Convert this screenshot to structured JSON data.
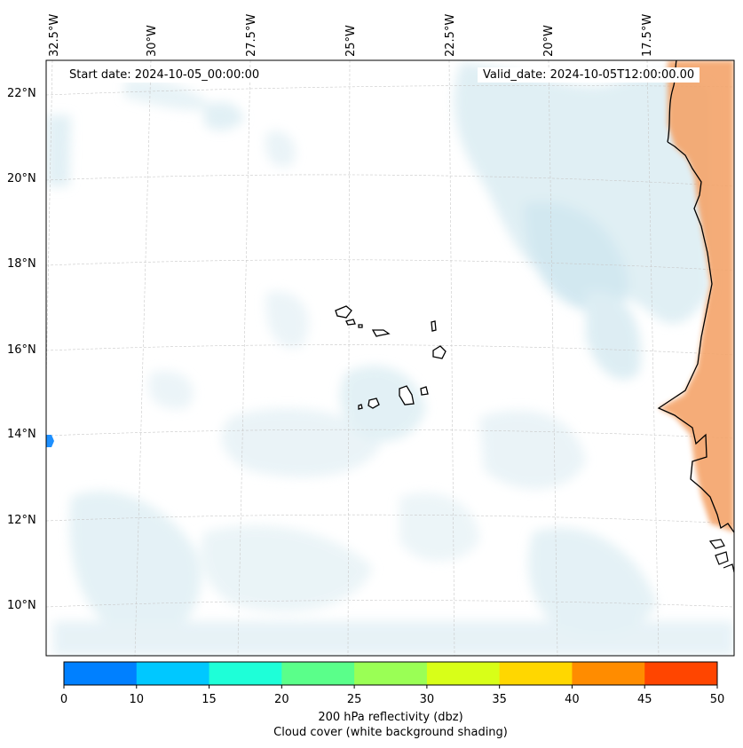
{
  "map": {
    "start_date_label": "Start date: 2024-10-05_00:00:00",
    "valid_date_label": "Valid_date: 2024-10-05T12:00:00.00",
    "longitude_labels": [
      "32.5°W",
      "30°W",
      "27.5°W",
      "25°W",
      "22.5°W",
      "20°W",
      "17.5°W"
    ],
    "latitude_labels": [
      "22°N",
      "20°N",
      "18°N",
      "16°N",
      "14°N",
      "12°N",
      "10°N"
    ],
    "land_color": "#f4a46a",
    "cloud_color": "#cfe6ef",
    "coastline_color": "#000000"
  },
  "colorbar": {
    "ticks": [
      "0",
      "10",
      "15",
      "20",
      "25",
      "30",
      "35",
      "40",
      "45",
      "50"
    ],
    "colors": [
      "#0080ff",
      "#00c8ff",
      "#1effd8",
      "#5aff8a",
      "#9aff55",
      "#d8ff18",
      "#ffd700",
      "#ff8c00",
      "#ff4500"
    ],
    "label_line1": "200 hPa reflectivity (dbz)",
    "label_line2": "Cloud cover (white background shading)"
  }
}
